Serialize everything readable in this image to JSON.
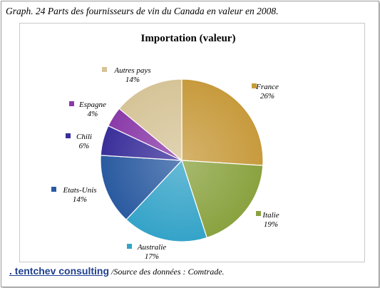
{
  "caption": "Graph. 24 Parts des fournisseurs de vin du Canada en valeur en 2008.",
  "footer": {
    "brand": ". tentchev consulting",
    "source": "/Source des données : Comtrade."
  },
  "chart_data": {
    "type": "pie",
    "title": "Importation (valeur)",
    "categories": [
      "France",
      "Italie",
      "Australie",
      "Etats-Unis",
      "Chili",
      "Espagne",
      "Autres pays"
    ],
    "values": [
      26,
      19,
      17,
      14,
      6,
      4,
      14
    ],
    "labels": [
      "26%",
      "19%",
      "17%",
      "14%",
      "6%",
      "4%",
      "14%"
    ],
    "colors": [
      "#c79a3c",
      "#8aa23f",
      "#34a3c8",
      "#2a5aa0",
      "#3a2f9a",
      "#8a3aa8",
      "#d6c498"
    ],
    "start_angle_deg": 0,
    "direction": "clockwise"
  }
}
